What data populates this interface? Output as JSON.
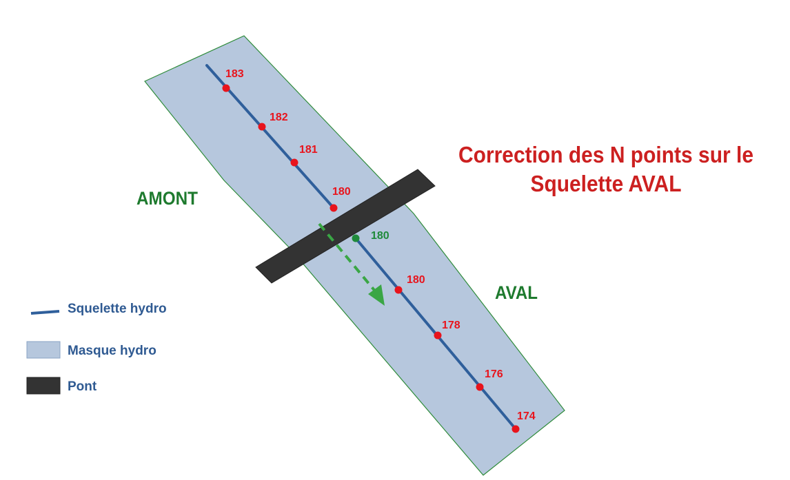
{
  "title": {
    "line1": "Correction des N points sur le",
    "line2": "Squelette AVAL"
  },
  "zones": {
    "upstream": "AMONT",
    "downstream": "AVAL"
  },
  "legend": {
    "skeleton": "Squelette hydro",
    "mask": "Masque hydro",
    "bridge": "Pont"
  },
  "upstream_points": [
    "183",
    "182",
    "181",
    "180"
  ],
  "corrected_point": "180",
  "downstream_points": [
    "180",
    "178",
    "176",
    "174"
  ],
  "colors": {
    "mask_fill": "#b6c7dd",
    "mask_stroke": "#2e8b3a",
    "skeleton": "#2f5f9b",
    "bridge": "#333333",
    "point_red": "#e8141c",
    "point_green": "#1f8a3a",
    "arrow_green": "#3aa645",
    "title_red": "#cc2020",
    "zone_green": "#1e7a2e",
    "legend_text": "#2f5a92"
  },
  "icons": {
    "flow_arrow": "dashed-arrow-down-right"
  }
}
